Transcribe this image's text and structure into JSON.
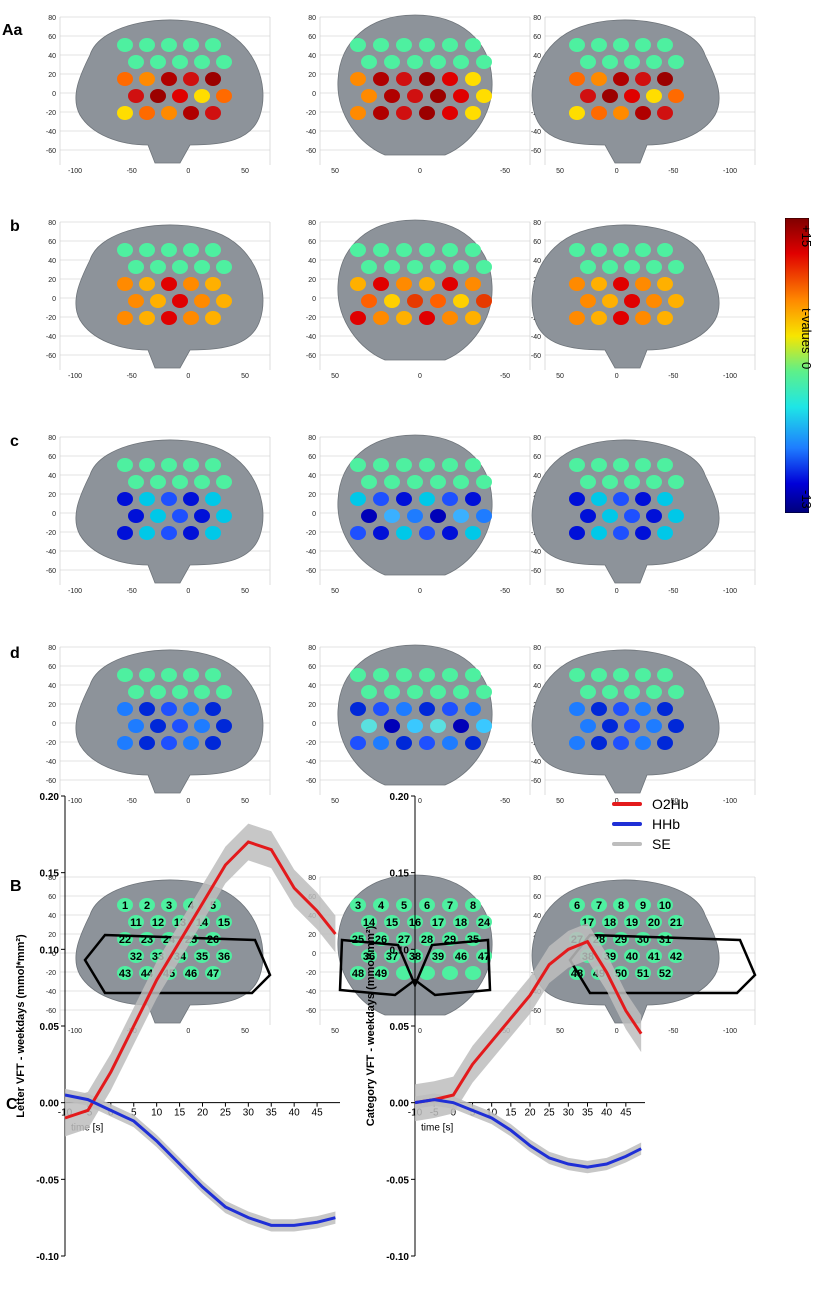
{
  "panel_labels": [
    "Aa",
    "b",
    "c",
    "d",
    "B",
    "C"
  ],
  "colorbar": {
    "title": "t-values",
    "max_label": "+15",
    "mid_label": "0",
    "min_label": "-13",
    "range": [
      -13,
      15
    ]
  },
  "axis_ticks": {
    "z": [
      "80",
      "60",
      "40",
      "20",
      "0",
      "-20",
      "-40",
      "-60"
    ],
    "lateral_left": [
      "-100",
      "-50",
      "0",
      "50"
    ],
    "lateral_right": [
      "50",
      "0",
      "-50",
      "-100"
    ],
    "frontal": [
      "50",
      "0",
      "-50"
    ],
    "depth_left": [
      "0",
      "50"
    ],
    "depth_right": [
      "50",
      "0"
    ]
  },
  "channel_map": {
    "left_lateral": [
      "1",
      "2",
      "3",
      "4",
      "5",
      "11",
      "12",
      "13",
      "14",
      "15",
      "22",
      "23",
      "24",
      "25",
      "26",
      "32",
      "33",
      "34",
      "35",
      "36",
      "43",
      "44",
      "45",
      "46",
      "47"
    ],
    "frontal": [
      "3",
      "4",
      "5",
      "6",
      "7",
      "8",
      "14",
      "15",
      "16",
      "17",
      "18",
      "24",
      "25",
      "26",
      "27",
      "28",
      "29",
      "35",
      "36",
      "37",
      "38",
      "39",
      "46",
      "47",
      "48",
      "49"
    ],
    "right_lateral": [
      "6",
      "7",
      "8",
      "9",
      "10",
      "17",
      "18",
      "19",
      "20",
      "21",
      "27",
      "28",
      "29",
      "30",
      "31",
      "38",
      "39",
      "40",
      "41",
      "42",
      "48",
      "49",
      "50",
      "51",
      "52"
    ]
  },
  "colors": {
    "o2hb": "#e31a1c",
    "hhb": "#1f2fd6",
    "se": "#bdbdbd",
    "brain": "#8d939a",
    "neutral_channel": "#4ef0a0"
  },
  "legend": [
    {
      "name": "O2Hb",
      "color": "#e31a1c"
    },
    {
      "name": "HHb",
      "color": "#1f2fd6"
    },
    {
      "name": "SE",
      "color": "#bdbdbd"
    }
  ],
  "chart_data": [
    {
      "type": "line",
      "ylabel": "Letter VFT - weekdays (mmol*mm²)",
      "xlabel": "time [s]",
      "xlim": [
        -10,
        50
      ],
      "ylim": [
        -0.1,
        0.2
      ],
      "xticks": [
        "-10",
        "-5",
        "0",
        "5",
        "10",
        "15",
        "20",
        "25",
        "30",
        "35",
        "40",
        "45"
      ],
      "yticks": [
        "0.20",
        "0.15",
        "0.10",
        "0.05",
        "0.00",
        "-0.05",
        "-0.10"
      ],
      "series": [
        {
          "name": "O2Hb",
          "x": [
            -10,
            -5,
            0,
            5,
            10,
            15,
            20,
            25,
            30,
            35,
            40,
            45,
            49
          ],
          "y": [
            -0.01,
            -0.005,
            0.02,
            0.05,
            0.08,
            0.105,
            0.13,
            0.155,
            0.17,
            0.165,
            0.14,
            0.125,
            0.11
          ],
          "se": 0.012
        },
        {
          "name": "HHb",
          "x": [
            -10,
            -5,
            0,
            5,
            10,
            15,
            20,
            25,
            30,
            35,
            40,
            45,
            49
          ],
          "y": [
            0.005,
            0.002,
            -0.005,
            -0.012,
            -0.025,
            -0.04,
            -0.055,
            -0.068,
            -0.075,
            -0.08,
            -0.08,
            -0.078,
            -0.075
          ],
          "se": 0.004
        }
      ]
    },
    {
      "type": "line",
      "ylabel": "Category VFT - weekdays (mmol*mm²)",
      "xlabel": "time [s]",
      "xlim": [
        -10,
        50
      ],
      "ylim": [
        -0.1,
        0.2
      ],
      "xticks": [
        "-10",
        "-5",
        "0",
        "5",
        "10",
        "15",
        "20",
        "25",
        "30",
        "35",
        "40",
        "45"
      ],
      "yticks": [
        "0.20",
        "0.15",
        "0.10",
        "0.05",
        "0.00",
        "-0.05",
        "-0.10"
      ],
      "series": [
        {
          "name": "O2Hb",
          "x": [
            -10,
            -5,
            0,
            5,
            10,
            15,
            20,
            25,
            30,
            35,
            40,
            45,
            49
          ],
          "y": [
            0,
            0.002,
            0.005,
            0.025,
            0.04,
            0.055,
            0.07,
            0.09,
            0.1,
            0.105,
            0.085,
            0.06,
            0.045
          ],
          "se": 0.012
        },
        {
          "name": "HHb",
          "x": [
            -10,
            -5,
            0,
            5,
            10,
            15,
            20,
            25,
            30,
            35,
            40,
            45,
            49
          ],
          "y": [
            0,
            0.002,
            0,
            -0.005,
            -0.01,
            -0.018,
            -0.028,
            -0.036,
            -0.04,
            -0.042,
            -0.04,
            -0.035,
            -0.03
          ],
          "se": 0.004
        }
      ]
    }
  ]
}
